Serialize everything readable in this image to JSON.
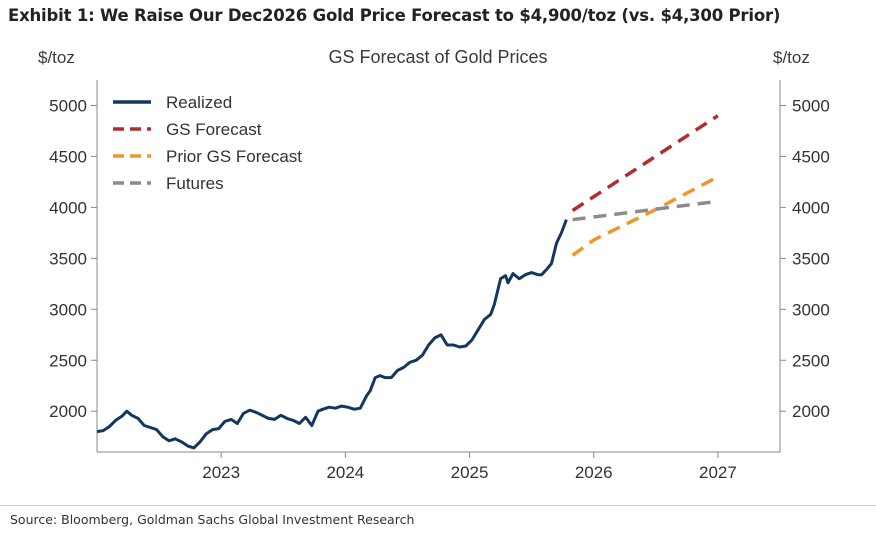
{
  "header": {
    "exhibit_title": "Exhibit 1: We Raise Our Dec2026 Gold Price Forecast to $4,900/toz (vs. $4,300 Prior)"
  },
  "footer": {
    "source": "Source: Bloomberg, Goldman Sachs Global Investment Research"
  },
  "chart_data": {
    "type": "line",
    "title": "GS Forecast of Gold Prices",
    "ylabel_left": "$/toz",
    "ylabel_right": "$/toz",
    "xlabel": "",
    "xlim": [
      2022.0,
      2027.5
    ],
    "ylim": [
      1600,
      5250
    ],
    "x_ticks": [
      2023,
      2024,
      2025,
      2026,
      2027
    ],
    "x_tick_labels": [
      "2023",
      "2024",
      "2025",
      "2026",
      "2027"
    ],
    "y_ticks": [
      2000,
      2500,
      3000,
      3500,
      4000,
      4500,
      5000
    ],
    "y_tick_labels": [
      "2000",
      "2500",
      "3000",
      "3500",
      "4000",
      "4500",
      "5000"
    ],
    "grid": false,
    "legend_position": "top-left",
    "series": [
      {
        "name": "Realized",
        "style": "solid",
        "color": "#13375f",
        "x": [
          2022.0,
          2022.05,
          2022.1,
          2022.15,
          2022.2,
          2022.24,
          2022.28,
          2022.33,
          2022.38,
          2022.43,
          2022.48,
          2022.53,
          2022.58,
          2022.63,
          2022.68,
          2022.73,
          2022.78,
          2022.83,
          2022.88,
          2022.93,
          2022.98,
          2023.03,
          2023.08,
          2023.13,
          2023.18,
          2023.23,
          2023.28,
          2023.33,
          2023.38,
          2023.43,
          2023.48,
          2023.53,
          2023.58,
          2023.63,
          2023.68,
          2023.73,
          2023.78,
          2023.82,
          2023.87,
          2023.92,
          2023.97,
          2024.02,
          2024.07,
          2024.12,
          2024.17,
          2024.2,
          2024.24,
          2024.28,
          2024.32,
          2024.37,
          2024.42,
          2024.47,
          2024.52,
          2024.57,
          2024.62,
          2024.67,
          2024.72,
          2024.77,
          2024.82,
          2024.87,
          2024.92,
          2024.97,
          2025.02,
          2025.07,
          2025.12,
          2025.17,
          2025.2,
          2025.25,
          2025.29,
          2025.31,
          2025.35,
          2025.4,
          2025.45,
          2025.5,
          2025.55,
          2025.58,
          2025.62,
          2025.66,
          2025.7,
          2025.74,
          2025.78
        ],
        "y": [
          1800,
          1810,
          1850,
          1910,
          1950,
          2000,
          1960,
          1930,
          1860,
          1840,
          1820,
          1750,
          1710,
          1730,
          1700,
          1660,
          1640,
          1700,
          1780,
          1820,
          1830,
          1900,
          1920,
          1880,
          1980,
          2010,
          1990,
          1960,
          1930,
          1920,
          1960,
          1930,
          1910,
          1880,
          1940,
          1860,
          2000,
          2020,
          2040,
          2030,
          2050,
          2040,
          2020,
          2030,
          2150,
          2200,
          2330,
          2350,
          2330,
          2330,
          2400,
          2430,
          2480,
          2500,
          2550,
          2650,
          2720,
          2750,
          2650,
          2650,
          2630,
          2640,
          2700,
          2800,
          2900,
          2950,
          3050,
          3300,
          3330,
          3260,
          3350,
          3300,
          3340,
          3360,
          3340,
          3340,
          3390,
          3450,
          3650,
          3750,
          3880
        ]
      },
      {
        "name": "GS Forecast",
        "style": "dashed",
        "color": "#b22d2f",
        "x": [
          2025.83,
          2027.0
        ],
        "y": [
          3970,
          4900
        ]
      },
      {
        "name": "Prior GS Forecast",
        "style": "dashed",
        "color": "#f0962a",
        "x": [
          2025.83,
          2026.0,
          2026.5,
          2027.0
        ],
        "y": [
          3530,
          3680,
          3980,
          4300
        ]
      },
      {
        "name": "Futures",
        "style": "dashed",
        "color": "#8c8c8c",
        "x": [
          2025.83,
          2027.0
        ],
        "y": [
          3880,
          4060
        ]
      }
    ]
  }
}
